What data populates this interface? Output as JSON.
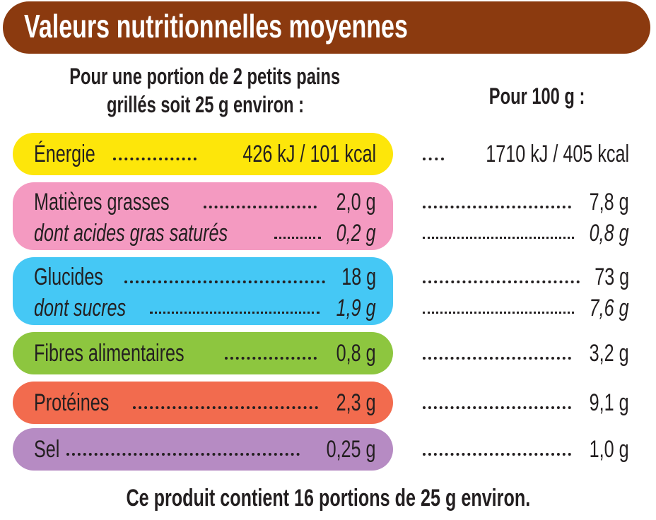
{
  "title": "Valeurs nutritionnelles moyennes",
  "portion_header_line1": "Pour une portion de 2 petits pains",
  "portion_header_line2": "grillés soit 25 g environ  :",
  "per100_header": "Pour 100 g :",
  "colors": {
    "title_bg": "#8b3a0f",
    "energie": "#fde60a",
    "matieres": "#f49ac1",
    "glucides": "#45c8f5",
    "fibres": "#8dc63f",
    "proteines": "#f26b4e",
    "sel": "#b68bc3"
  },
  "rows": {
    "energie": {
      "label": "Énergie",
      "portion": "426 kJ / 101 kcal",
      "per100": "1710 kJ / 405 kcal"
    },
    "matieres": {
      "label": "Matières grasses",
      "portion": "2,0 g",
      "per100": "7,8 g"
    },
    "satures": {
      "label": "dont acides gras saturés",
      "portion": "0,2 g",
      "per100": "0,8 g"
    },
    "glucides": {
      "label": "Glucides",
      "portion": "18 g",
      "per100": "73 g"
    },
    "sucres": {
      "label": "dont sucres",
      "portion": "1,9 g",
      "per100": "7,6 g"
    },
    "fibres": {
      "label": "Fibres alimentaires",
      "portion": "0,8 g",
      "per100": "3,2 g"
    },
    "proteines": {
      "label": "Protéines",
      "portion": "2,3 g",
      "per100": "9,1 g"
    },
    "sel": {
      "label": "Sel",
      "portion": "0,25 g",
      "per100": "1,0 g"
    }
  },
  "footer": "Ce produit contient 16 portions de 25 g environ."
}
